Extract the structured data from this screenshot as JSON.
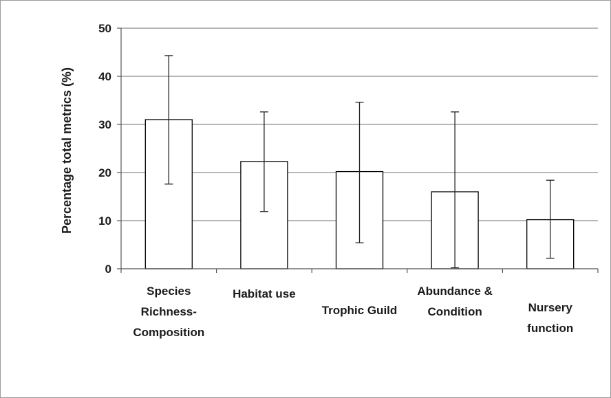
{
  "chart_data": {
    "type": "bar",
    "categories": [
      [
        "Species",
        "Richness-",
        "Composition"
      ],
      [
        "Habitat use"
      ],
      [
        "Trophic Guild"
      ],
      [
        "Abundance &",
        "Condition"
      ],
      [
        "Nursery",
        "function"
      ]
    ],
    "values": [
      31,
      22.3,
      20.2,
      16,
      10.2
    ],
    "error_low": [
      17.6,
      11.9,
      5.4,
      0.2,
      2.2
    ],
    "error_high": [
      44.3,
      32.6,
      34.6,
      32.6,
      18.4
    ],
    "xlabel": "",
    "ylabel": "Percentage total metrics (%)",
    "ylim": [
      0,
      50
    ],
    "yticks": [
      "0",
      "10",
      "20",
      "30",
      "40",
      "50"
    ],
    "grid": true,
    "legend": "none",
    "bar_fill": "#ffffff",
    "bar_stroke": "#000000",
    "grid_color": "#8c8c8c"
  }
}
